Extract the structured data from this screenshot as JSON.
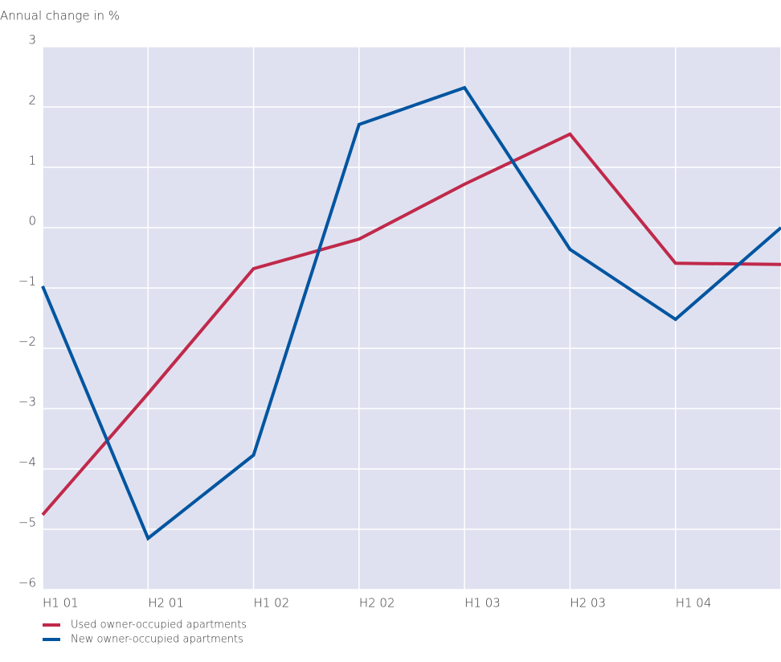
{
  "chart_data": {
    "type": "line",
    "title": "Annual change in %",
    "categories": [
      "H1 01",
      "H2 01",
      "H1 02",
      "H2 02",
      "H1 03",
      "H2 03",
      "H1 04",
      null
    ],
    "series": [
      {
        "name": "Used owner-occupied apartments",
        "color": "#c0294a",
        "values": [
          -4.76,
          -2.75,
          -0.68,
          -0.19,
          0.72,
          1.55,
          -0.59,
          -0.61
        ]
      },
      {
        "name": "New owner-occupied apartments",
        "color": "#0055a0",
        "values": [
          -0.97,
          -5.15,
          -3.77,
          1.71,
          2.32,
          -0.36,
          -1.52,
          0
        ]
      }
    ],
    "ylim": [
      -6,
      3
    ],
    "yticks": [
      {
        "value": -6,
        "label": "−6"
      },
      {
        "value": -5,
        "label": "−5"
      },
      {
        "value": -4,
        "label": "−4"
      },
      {
        "value": -3,
        "label": "−3"
      },
      {
        "value": -2,
        "label": "−2"
      },
      {
        "value": -1,
        "label": "−1"
      },
      0,
      1,
      2,
      3
    ],
    "grid": true
  }
}
